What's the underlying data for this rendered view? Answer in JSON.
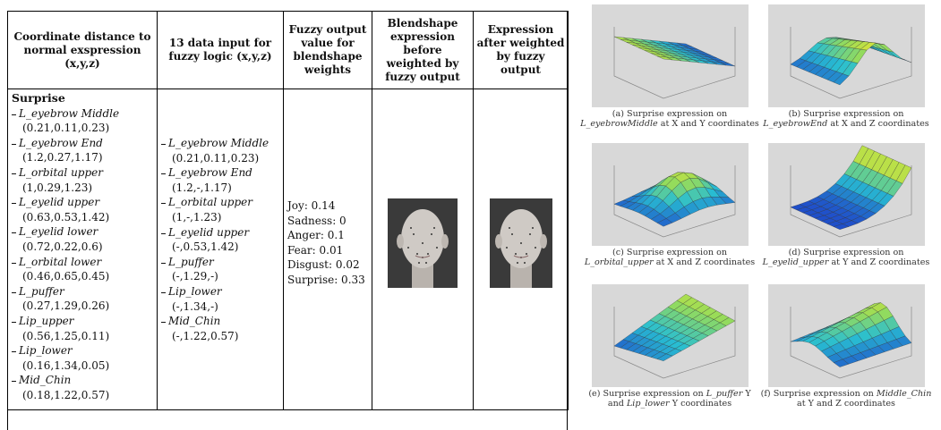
{
  "table": {
    "headers": [
      "Coordinate distance to normal exspression (x,y,z)",
      "13 data  input for fuzzy logic (x,y,z)",
      "Fuzzy output value for blendshape weights",
      "Blendshape expression before weighted by fuzzy output",
      "Expression after weighted by fuzzy output"
    ],
    "coordinate_distance": {
      "heading": "Surprise",
      "items": [
        {
          "name": "L_eyebrow Middle",
          "coords": "(0.21,0.11,0.23)"
        },
        {
          "name": "L_eyebrow End",
          "coords": "(1.2,0.27,1.17)"
        },
        {
          "name": "L_orbital upper",
          "coords": "(1,0.29,1.23)"
        },
        {
          "name": "L_eyelid upper",
          "coords": "(0.63,0.53,1.42)"
        },
        {
          "name": "L_eyelid lower",
          "coords": "(0.72,0.22,0.6)"
        },
        {
          "name": "L_orbital lower",
          "coords": "(0.46,0.65,0.45)"
        },
        {
          "name": "L_puffer",
          "coords": "(0.27,1.29,0.26)"
        },
        {
          "name": "Lip_upper",
          "coords": "(0.56,1.25,0.11)"
        },
        {
          "name": "Lip_lower",
          "coords": "(0.16,1.34,0.05)"
        },
        {
          "name": "Mid_Chin",
          "coords": "(0.18,1.22,0.57)"
        }
      ]
    },
    "fuzzy_inputs": [
      {
        "name": "L_eyebrow Middle",
        "coords": "(0.21,0.11,0.23)"
      },
      {
        "name": "L_eyebrow End",
        "coords": "(1.2,-,1.17)"
      },
      {
        "name": "L_orbital upper",
        "coords": "(1,-,1.23)"
      },
      {
        "name": "L_eyelid upper",
        "coords": "(-,0.53,1.42)"
      },
      {
        "name": "L_puffer",
        "coords": "(-,1.29,-)"
      },
      {
        "name": "Lip_lower",
        "coords": "(-,1.34,-)"
      },
      {
        "name": "Mid_Chin",
        "coords": "(-,1.22,0.57)"
      }
    ],
    "fuzzy_outputs": [
      "Joy: 0.14",
      "Sadness: 0",
      "Anger: 0.1",
      "Fear: 0.01",
      "Disgust: 0.02",
      "Surprise: 0.33"
    ]
  },
  "figures": [
    [
      "(a) Surprise expression on ",
      "L_eyebrowMiddle",
      " at X and Y coordinates"
    ],
    [
      "(b) Surprise expression on ",
      "L_eyebrowEnd",
      " at X and Z coordinates"
    ],
    [
      "(c) Surprise expression on ",
      "L_orbital_upper",
      " at X and Z coordinates"
    ],
    [
      "(d) Surprise expression on ",
      "L_eyelid_upper",
      " at Y and Z coordinates"
    ],
    [
      "(e) Surprise expression on ",
      "L_puffer",
      " Y and ",
      "Lip_lower",
      " Y coordinates"
    ],
    [
      "(f) Surprise expression on ",
      "Middle_Chin",
      " at Y and Z coordinates"
    ]
  ]
}
